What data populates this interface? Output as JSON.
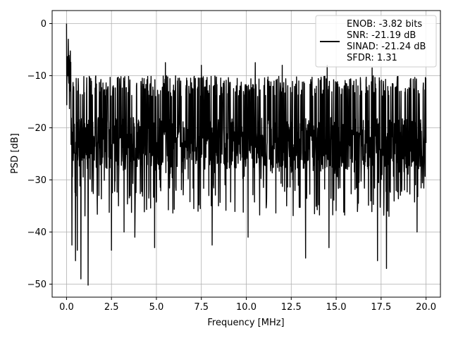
{
  "chart_data": {
    "type": "line",
    "title": "",
    "xlabel": "Frequency [MHz]",
    "ylabel": "PSD [dB]",
    "xlim": [
      -0.8,
      20.8
    ],
    "ylim": [
      -52.5,
      2.5
    ],
    "xticks": [
      0.0,
      2.5,
      5.0,
      7.5,
      10.0,
      12.5,
      15.0,
      17.5,
      20.0
    ],
    "xtick_labels": [
      "0.0",
      "2.5",
      "5.0",
      "7.5",
      "10.0",
      "12.5",
      "15.0",
      "17.5",
      "20.0"
    ],
    "yticks": [
      0,
      -10,
      -20,
      -30,
      -40,
      -50
    ],
    "ytick_labels": [
      "0",
      "−10",
      "−20",
      "−30",
      "−40",
      "−50"
    ],
    "grid": true,
    "legend_position": "top-right",
    "line_color": "#000000",
    "series": [
      {
        "legend_lines": [
          "ENOB: -3.82 bits",
          "SNR: -21.19 dB",
          "SINAD: -21.24 dB",
          "SFDR: 1.31"
        ],
        "summary": {
          "peak_value": 0.0,
          "noise_range": [
            -50.0,
            -8.0
          ],
          "x_range": [
            0.0,
            20.0
          ]
        },
        "prominent_dips": [
          {
            "x": 0.3,
            "y": -42.5
          },
          {
            "x": 0.5,
            "y": -45.5
          },
          {
            "x": 0.6,
            "y": -43.5
          },
          {
            "x": 0.8,
            "y": -49.0
          },
          {
            "x": 1.2,
            "y": -50.2
          },
          {
            "x": 2.5,
            "y": -43.5
          },
          {
            "x": 3.2,
            "y": -40.0
          },
          {
            "x": 3.8,
            "y": -41.0
          },
          {
            "x": 4.9,
            "y": -43.0
          },
          {
            "x": 8.1,
            "y": -42.5
          },
          {
            "x": 10.1,
            "y": -41.0
          },
          {
            "x": 13.3,
            "y": -45.0
          },
          {
            "x": 14.6,
            "y": -43.0
          },
          {
            "x": 17.3,
            "y": -45.5
          },
          {
            "x": 17.8,
            "y": -47.0
          },
          {
            "x": 19.5,
            "y": -40.0
          }
        ],
        "prominent_peaks": [
          {
            "x": 0.0,
            "y": 0.0
          },
          {
            "x": 0.1,
            "y": -3.0
          },
          {
            "x": 0.2,
            "y": -7.0
          },
          {
            "x": 5.5,
            "y": -7.5
          },
          {
            "x": 7.5,
            "y": -8.0
          },
          {
            "x": 10.5,
            "y": -7.5
          },
          {
            "x": 12.0,
            "y": -8.0
          },
          {
            "x": 14.5,
            "y": -8.0
          },
          {
            "x": 17.0,
            "y": -8.5
          }
        ]
      }
    ]
  }
}
